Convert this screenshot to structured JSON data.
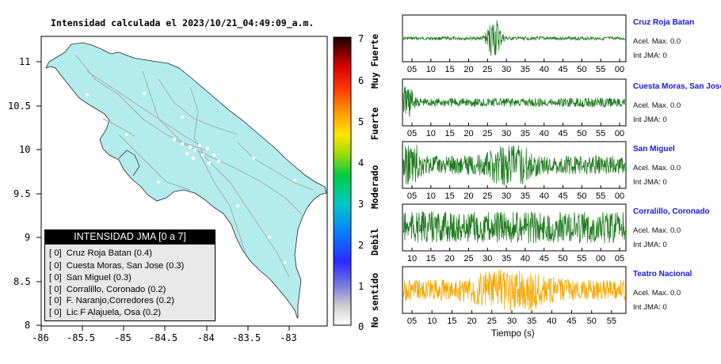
{
  "map": {
    "title": "Intensidad calculada el 2023/10/21_04:49:09_a.m.",
    "y_ticks": [
      "11",
      "10.5",
      "10",
      "9.5",
      "9",
      "8.5",
      "8"
    ],
    "x_ticks": [
      "-86",
      "-85.5",
      "-85",
      "-84.5",
      "-84",
      "-83.5",
      "-83"
    ],
    "land_color": "#b3ecec",
    "sea_color": "#ffffff"
  },
  "legend": {
    "title": "INTENSIDAD JMA [0 a 7]",
    "rows": [
      "[ 0]  Cruz Roja Batan (0.4)",
      "[ 0]  Cuesta Moras, San Jose (0.3)",
      "[ 0]  San Miguel (0.3)",
      "[ 0]  Corralillo, Coronado (0.2)",
      "[ 0]  F. Naranjo,Corredores (0.2)",
      "[ 0]  Lic F Alajuela, Osa (0.2)"
    ]
  },
  "colorbar": {
    "numbers": [
      "7",
      "6",
      "5",
      "4",
      "3",
      "2",
      "1",
      "0"
    ],
    "labels": [
      "Muy Fuerte",
      "Fuerte",
      "Moderado",
      "Debil",
      "No sentido"
    ]
  },
  "stations": [
    {
      "name": "Cruz Roja Batan",
      "acel": "Acel. Max. 0.0",
      "int": "Int JMA: 0",
      "color": "#1f7a1f",
      "ticks": [
        "05",
        "10",
        "15",
        "20",
        "25",
        "30",
        "35",
        "40",
        "45",
        "50",
        "55",
        "00"
      ]
    },
    {
      "name": "Cuesta Moras, San Jose",
      "acel": "Acel. Max. 0.0",
      "int": "Int JMA: 0",
      "color": "#1f7a1f",
      "ticks": [
        "05",
        "10",
        "15",
        "20",
        "25",
        "30",
        "35",
        "40",
        "45",
        "50",
        "55",
        "00"
      ]
    },
    {
      "name": "San Miguel",
      "acel": "Acel. Max. 0.0",
      "int": "Int JMA: 0",
      "color": "#1f7a1f",
      "ticks": [
        "05",
        "10",
        "15",
        "20",
        "25",
        "30",
        "35",
        "40",
        "45",
        "50",
        "55",
        "00"
      ]
    },
    {
      "name": "Corralillo, Coronado",
      "acel": "Acel. Max. 0.0",
      "int": "Int JMA: 0",
      "color": "#1f7a1f",
      "ticks": [
        "10",
        "15",
        "20",
        "25",
        "30",
        "35",
        "40",
        "45",
        "50",
        "55",
        "00",
        "05"
      ]
    },
    {
      "name": "Teatro Nacional",
      "acel": "Acel. Max. 0.0",
      "int": "Int JMA: 0",
      "color": "#f5a800",
      "ticks": [
        "05",
        "10",
        "15",
        "20",
        "25",
        "30",
        "35",
        "40",
        "45",
        "50",
        "55"
      ]
    }
  ],
  "xlabel": "Tiempo (s)",
  "chart_data": [
    {
      "type": "heatmap",
      "title": "Intensidad calculada el 2023/10/21_04:49:09_a.m.",
      "xlim": [
        -86,
        -82.6
      ],
      "ylim": [
        8,
        11.3
      ],
      "colorbar_range": [
        0,
        7
      ],
      "legend": "bottom-left"
    },
    {
      "type": "line",
      "xlabel": "Tiempo (s)",
      "series": [
        {
          "name": "Cruz Roja Batan",
          "peak_at_tick": "27"
        },
        {
          "name": "Cuesta Moras, San Jose",
          "peak_at_tick": "03"
        },
        {
          "name": "San Miguel",
          "peak_at_tick": "05"
        },
        {
          "name": "Corralillo, Coronado"
        },
        {
          "name": "Teatro Nacional"
        }
      ]
    }
  ]
}
